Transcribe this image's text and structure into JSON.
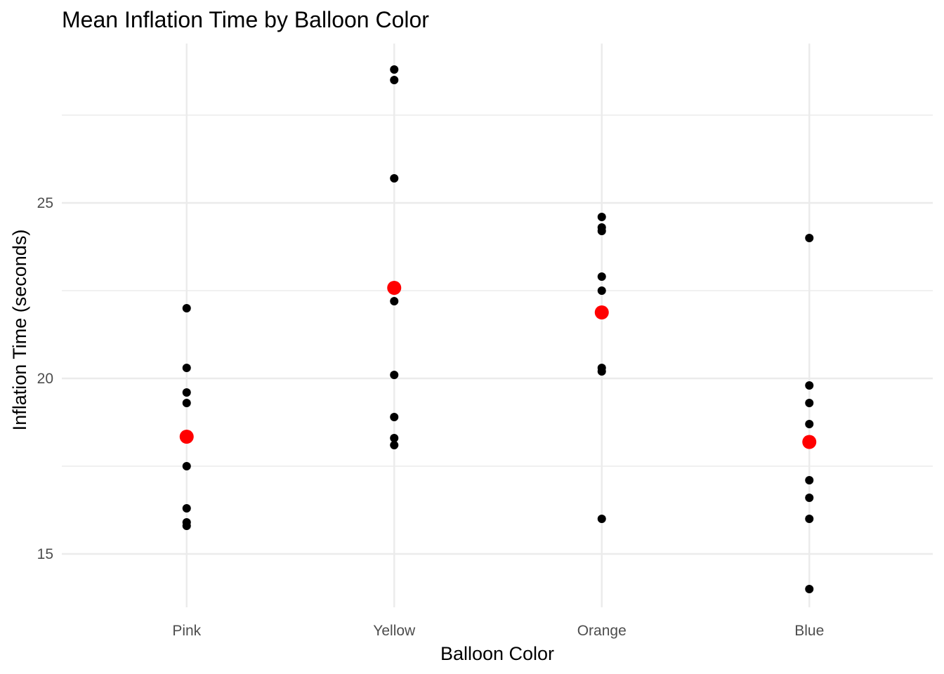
{
  "chart_data": {
    "type": "scatter",
    "title": "Mean Inflation Time by Balloon Color",
    "xlabel": "Balloon Color",
    "ylabel": "Inflation Time (seconds)",
    "categories": [
      "Pink",
      "Yellow",
      "Orange",
      "Blue"
    ],
    "ylim": [
      13.5,
      29.5
    ],
    "yticks": [
      15,
      20,
      25
    ],
    "yticks_minor": [
      17.5,
      22.5,
      27.5
    ],
    "grid": true,
    "legend": "none",
    "series": [
      {
        "name": "observations",
        "color": "#000000",
        "points": [
          {
            "x": "Pink",
            "values": [
              22.0,
              20.3,
              19.6,
              19.3,
              17.5,
              16.3,
              15.9,
              15.8
            ]
          },
          {
            "x": "Yellow",
            "values": [
              28.8,
              28.5,
              25.7,
              22.2,
              20.1,
              18.9,
              18.3,
              18.1
            ]
          },
          {
            "x": "Orange",
            "values": [
              24.6,
              24.3,
              24.2,
              22.9,
              22.5,
              20.3,
              20.2,
              16.0
            ]
          },
          {
            "x": "Blue",
            "values": [
              24.0,
              19.8,
              19.3,
              18.7,
              17.1,
              16.6,
              16.0,
              14.0
            ]
          }
        ]
      },
      {
        "name": "mean",
        "color": "#ff0000",
        "values": [
          18.34,
          22.58,
          21.88,
          18.19
        ]
      }
    ]
  }
}
